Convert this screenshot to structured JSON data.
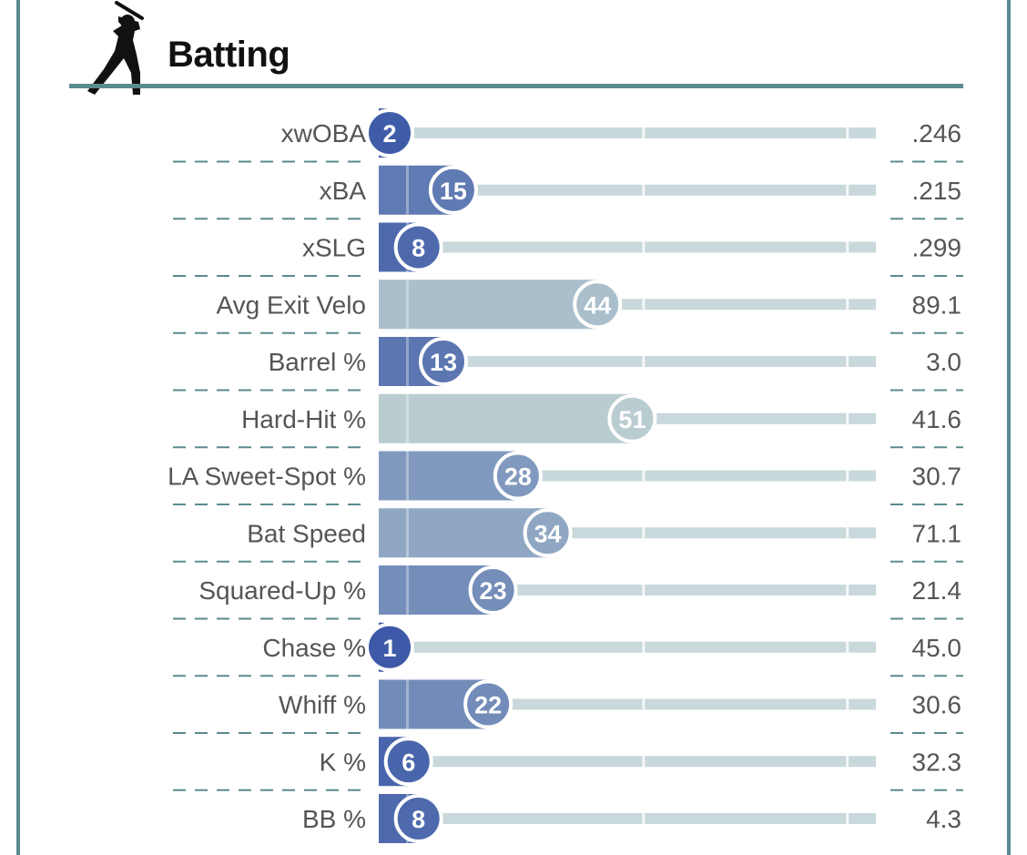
{
  "section": {
    "title": "Batting",
    "icon": "batter-icon"
  },
  "colors": {
    "frame": "#5b8a8f",
    "header_rule": "#5b8a8f",
    "track": "#c9d8da",
    "neutral": "#b9cdd0",
    "cold_strong": "#3a57a6",
    "label_text": "#555555"
  },
  "chart_data": {
    "type": "bar",
    "orientation": "horizontal",
    "title": "Batting",
    "value_kind": "percentile",
    "xlim": [
      0,
      100
    ],
    "categories": [
      "xwOBA",
      "xBA",
      "xSLG",
      "Avg Exit Velo",
      "Barrel %",
      "Hard-Hit %",
      "LA Sweet-Spot %",
      "Bat Speed",
      "Squared-Up %",
      "Chase %",
      "Whiff %",
      "K %",
      "BB %"
    ],
    "percentiles": [
      2,
      15,
      8,
      44,
      13,
      51,
      28,
      34,
      23,
      1,
      22,
      6,
      8
    ],
    "stat_values": [
      ".246",
      ".215",
      ".299",
      "89.1",
      "3.0",
      "41.6",
      "30.7",
      "71.1",
      "21.4",
      "45.0",
      "30.6",
      "32.3",
      "4.3"
    ]
  }
}
